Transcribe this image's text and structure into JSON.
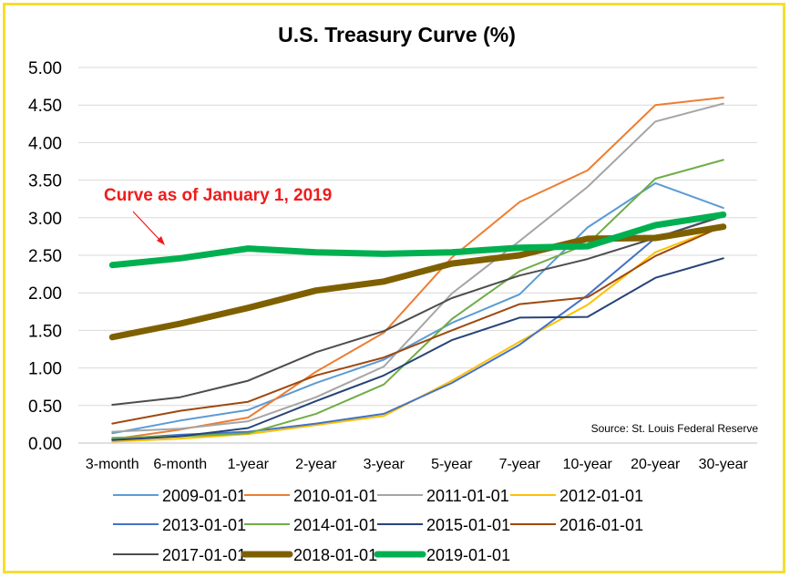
{
  "chart_data": {
    "type": "line",
    "title": "U.S. Treasury Curve (%)",
    "xlabel": "",
    "ylabel": "",
    "categories": [
      "3-month",
      "6-month",
      "1-year",
      "2-year",
      "3-year",
      "5-year",
      "7-year",
      "10-year",
      "20-year",
      "30-year"
    ],
    "yticks": [
      "0.00",
      "0.50",
      "1.00",
      "1.50",
      "2.00",
      "2.50",
      "3.00",
      "3.50",
      "4.00",
      "4.50",
      "5.00"
    ],
    "ylim": [
      0,
      5
    ],
    "grid": "horizontal",
    "legend": "bottom",
    "annotation": "Curve as of January 1, 2019",
    "source": "Source: St. Louis Federal Reserve",
    "series": [
      {
        "name": "2009-01-01",
        "color": "#5b9bd5",
        "bold": false,
        "values": [
          0.13,
          0.3,
          0.44,
          0.8,
          1.11,
          1.6,
          1.98,
          2.87,
          3.46,
          3.13
        ]
      },
      {
        "name": "2010-01-01",
        "color": "#ed7d31",
        "bold": false,
        "values": [
          0.05,
          0.18,
          0.34,
          0.95,
          1.47,
          2.47,
          3.21,
          3.63,
          4.5,
          4.6
        ]
      },
      {
        "name": "2011-01-01",
        "color": "#a5a5a5",
        "bold": false,
        "values": [
          0.15,
          0.19,
          0.29,
          0.61,
          1.02,
          1.99,
          2.69,
          3.41,
          4.28,
          4.52
        ]
      },
      {
        "name": "2012-01-01",
        "color": "#ffc000",
        "bold": false,
        "values": [
          0.02,
          0.06,
          0.12,
          0.24,
          0.36,
          0.83,
          1.35,
          1.84,
          2.54,
          2.89
        ]
      },
      {
        "name": "2013-01-01",
        "color": "#4472c4",
        "bold": false,
        "values": [
          0.05,
          0.11,
          0.15,
          0.26,
          0.39,
          0.8,
          1.31,
          1.97,
          2.73,
          3.03
        ]
      },
      {
        "name": "2014-01-01",
        "color": "#70ad47",
        "bold": false,
        "values": [
          0.07,
          0.09,
          0.13,
          0.39,
          0.78,
          1.65,
          2.29,
          2.65,
          3.52,
          3.77
        ]
      },
      {
        "name": "2015-01-01",
        "color": "#264478",
        "bold": false,
        "values": [
          0.04,
          0.09,
          0.2,
          0.56,
          0.9,
          1.37,
          1.67,
          1.68,
          2.2,
          2.46
        ]
      },
      {
        "name": "2016-01-01",
        "color": "#9e480e",
        "bold": false,
        "values": [
          0.26,
          0.43,
          0.55,
          0.9,
          1.14,
          1.5,
          1.85,
          1.94,
          2.49,
          2.89
        ]
      },
      {
        "name": "2017-01-01",
        "color": "#4d4d4d",
        "bold": false,
        "values": [
          0.51,
          0.61,
          0.83,
          1.21,
          1.49,
          1.93,
          2.23,
          2.45,
          2.73,
          3.02
        ]
      },
      {
        "name": "2018-01-01",
        "color": "#7f6000",
        "bold": true,
        "values": [
          1.41,
          1.59,
          1.8,
          2.03,
          2.15,
          2.39,
          2.5,
          2.72,
          2.73,
          2.88
        ]
      },
      {
        "name": "2019-01-01",
        "color": "#00b050",
        "bold": true,
        "values": [
          2.37,
          2.46,
          2.59,
          2.54,
          2.52,
          2.54,
          2.6,
          2.62,
          2.9,
          3.04
        ]
      }
    ]
  }
}
